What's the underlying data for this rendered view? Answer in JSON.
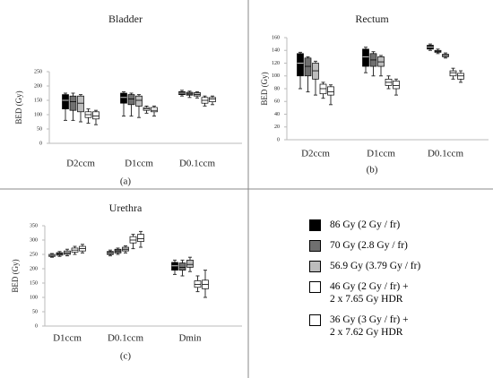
{
  "chart_data": [
    {
      "type": "box",
      "title": "Bladder",
      "y_label": "BED (Gy)",
      "caption": "(a)",
      "categories": [
        "D2ccm",
        "D1ccm",
        "D0.1ccm"
      ],
      "ylim": [
        0,
        250
      ],
      "yticks": [
        0,
        50,
        100,
        150,
        200,
        250
      ],
      "series": [
        {
          "values": [
            [
              80,
              120,
              150,
              170,
              175
            ],
            [
              95,
              140,
              160,
              175,
              180
            ],
            [
              165,
              170,
              175,
              180,
              185
            ]
          ]
        },
        {
          "values": [
            [
              80,
              115,
              145,
              165,
              175
            ],
            [
              95,
              135,
              155,
              170,
              175
            ],
            [
              160,
              168,
              172,
              178,
              182
            ]
          ]
        },
        {
          "values": [
            [
              75,
              110,
              140,
              165,
              170
            ],
            [
              90,
              130,
              150,
              165,
              170
            ],
            [
              158,
              165,
              170,
              177,
              180
            ]
          ]
        },
        {
          "values": [
            [
              70,
              90,
              100,
              110,
              120
            ],
            [
              105,
              115,
              120,
              125,
              130
            ],
            [
              130,
              140,
              150,
              160,
              165
            ]
          ]
        },
        {
          "values": [
            [
              65,
              85,
              95,
              110,
              115
            ],
            [
              95,
              110,
              115,
              125,
              130
            ],
            [
              135,
              145,
              155,
              160,
              165
            ]
          ]
        }
      ]
    },
    {
      "type": "box",
      "title": "Rectum",
      "y_label": "BED (Gy)",
      "caption": "(b)",
      "categories": [
        "D2ccm",
        "D1ccm",
        "D0.1ccm"
      ],
      "ylim": [
        0,
        160
      ],
      "yticks": [
        0,
        20,
        40,
        60,
        80,
        100,
        120,
        140,
        160
      ],
      "series": [
        {
          "values": [
            [
              80,
              100,
              120,
              135,
              137
            ],
            [
              105,
              115,
              130,
              142,
              145
            ],
            [
              140,
              142,
              145,
              148,
              150
            ]
          ]
        },
        {
          "values": [
            [
              75,
              100,
              115,
              128,
              130
            ],
            [
              100,
              115,
              125,
              135,
              138
            ],
            [
              135,
              137,
              138,
              140,
              142
            ]
          ]
        },
        {
          "values": [
            [
              70,
              95,
              108,
              120,
              123
            ],
            [
              100,
              115,
              122,
              130,
              132
            ],
            [
              128,
              130,
              132,
              134,
              136
            ]
          ]
        },
        {
          "values": [
            [
              65,
              72,
              80,
              87,
              90
            ],
            [
              80,
              85,
              90,
              95,
              100
            ],
            [
              95,
              100,
              105,
              108,
              112
            ]
          ]
        },
        {
          "values": [
            [
              55,
              70,
              75,
              83,
              86
            ],
            [
              70,
              80,
              85,
              92,
              95
            ],
            [
              90,
              95,
              100,
              104,
              108
            ]
          ]
        }
      ]
    },
    {
      "type": "box",
      "title": "Urethra",
      "y_label": "BED (Gy)",
      "caption": "(c)",
      "categories": [
        "D1ccm",
        "D0.1ccm",
        "Dmin"
      ],
      "ylim": [
        0,
        350
      ],
      "yticks": [
        0,
        50,
        100,
        150,
        200,
        250,
        300,
        350
      ],
      "series": [
        {
          "values": [
            [
              240,
              243,
              247,
              250,
              253
            ],
            [
              245,
              250,
              255,
              260,
              265
            ],
            [
              180,
              195,
              210,
              222,
              230
            ]
          ]
        },
        {
          "values": [
            [
              243,
              247,
              252,
              256,
              260
            ],
            [
              250,
              255,
              262,
              268,
              272
            ],
            [
              175,
              195,
              205,
              220,
              230
            ]
          ]
        },
        {
          "values": [
            [
              245,
              250,
              255,
              262,
              268
            ],
            [
              255,
              262,
              268,
              275,
              280
            ],
            [
              190,
              205,
              215,
              230,
              240
            ]
          ]
        },
        {
          "values": [
            [
              250,
              258,
              265,
              272,
              278
            ],
            [
              270,
              290,
              300,
              312,
              320
            ],
            [
              120,
              135,
              145,
              158,
              175
            ]
          ]
        },
        {
          "values": [
            [
              255,
              262,
              270,
              278,
              285
            ],
            [
              275,
              295,
              305,
              320,
              330
            ],
            [
              100,
              130,
              145,
              160,
              195
            ]
          ]
        }
      ]
    }
  ],
  "legend": {
    "items": [
      {
        "name": "86 Gy (2 Gy / fr)",
        "color": "#000000"
      },
      {
        "name": "70 Gy (2.8 Gy / fr)",
        "color": "#707070"
      },
      {
        "name": "56.9 Gy (3.79 Gy / fr)",
        "color": "#bdbdbd"
      },
      {
        "name": "46 Gy (2 Gy / fr) +\n2 x 7.65 Gy HDR",
        "color": "#ffffff"
      },
      {
        "name": "36 Gy (3 Gy / fr) +\n2 x 7.62 Gy HDR",
        "color": "#ffffff"
      }
    ]
  }
}
